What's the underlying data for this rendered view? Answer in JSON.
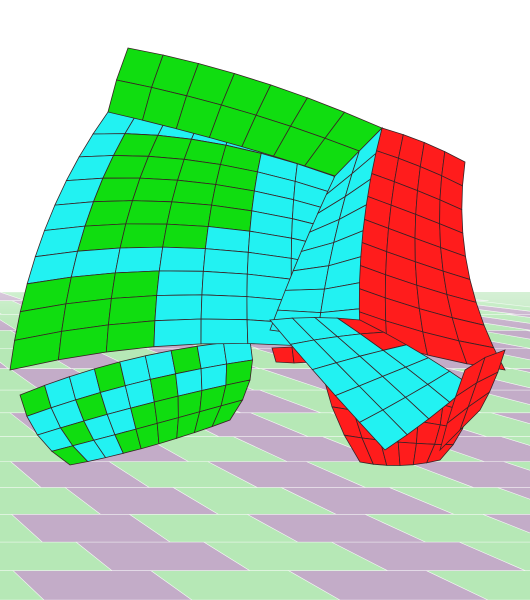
{
  "scene": {
    "background": "#ffffff",
    "floor": {
      "color_a": "#b6e8b6",
      "color_b": "#c3acc8",
      "grid_line": "#ffffff"
    },
    "mesh": {
      "colors": {
        "cyan": "#22f2f2",
        "green": "#10dd10",
        "red": "#ff1c1c",
        "edge": "#3a2226"
      }
    }
  }
}
